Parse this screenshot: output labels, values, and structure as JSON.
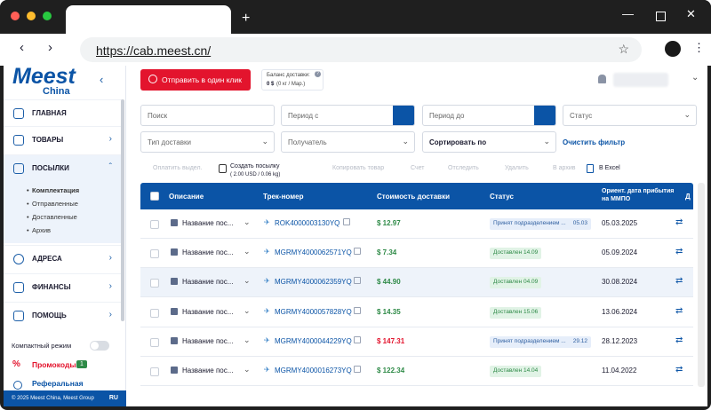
{
  "browser": {
    "url": "https://cab.meest.cn/"
  },
  "logo": {
    "brand": "Meest",
    "region": "China"
  },
  "sidebar": {
    "items": [
      {
        "label": "ГЛАВНАЯ"
      },
      {
        "label": "ТОВАРЫ"
      },
      {
        "label": "ПОСЫЛКИ"
      },
      {
        "label": "АДРЕСА"
      },
      {
        "label": "ФИНАНСЫ"
      },
      {
        "label": "ПОМОЩЬ"
      }
    ],
    "subitems": [
      "Комплектация",
      "Отправленные",
      "Доставленные",
      "Архив"
    ],
    "compact_mode": "Компактный режим",
    "promo": "Промокоды",
    "promo_count": "1",
    "referral": "Реферальная",
    "footer": "© 2025 Meest China, Meest Group",
    "lang": "RU"
  },
  "header": {
    "send_button": "Отправить в один клик",
    "balance_title": "Баланс доставки:",
    "balance_value": "0 $",
    "balance_detail": "(0 кг / Мар.)"
  },
  "filters": {
    "search": "Поиск",
    "period_from": "Период с",
    "period_to": "Период до",
    "status": "Статус",
    "delivery_type": "Тип доставки",
    "recipient": "Получатель",
    "sort": "Сортировать по",
    "clear": "Очистить фильтр"
  },
  "toolbar": {
    "pay": "Оплатить выдел.",
    "create": "Создать посылку",
    "create_sub": "( 2.00 USD / 0.06 kg)",
    "copy": "Копировать товар",
    "invoice": "Счет",
    "track": "Отследить",
    "delete": "Удалить",
    "archive": "В архив",
    "excel": "В Excel"
  },
  "table": {
    "headers": {
      "desc": "Описание",
      "track": "Трек-номер",
      "cost": "Стоимость доставки",
      "status": "Статус",
      "eta": "Ориент. дата прибытия на ММПО",
      "more": "Д"
    },
    "rows": [
      {
        "desc": "Название пос...",
        "track": "ROK4000003130YQ",
        "cost": "$ 12.97",
        "status": "Принят подразделением ...",
        "status_date": "05.03",
        "date": "05.03.2025"
      },
      {
        "desc": "Название пос...",
        "track": "MGRMY4000062571YQ",
        "cost": "$ 7.34",
        "status": "Доставлен 14.09",
        "status_date": "",
        "date": "05.09.2024"
      },
      {
        "desc": "Название пос...",
        "track": "MGRMY4000062359YQ",
        "cost": "$ 44.90",
        "status": "Доставлен 04.09",
        "status_date": "",
        "date": "30.08.2024"
      },
      {
        "desc": "Название пос...",
        "track": "MGRMY4000057828YQ",
        "cost": "$ 14.35",
        "status": "Доставлен 15.06",
        "status_date": "",
        "date": "13.06.2024"
      },
      {
        "desc": "Название пос...",
        "track": "MGRMY4000044229YQ",
        "cost": "$ 147.31",
        "status": "Принят подразделением ...",
        "status_date": "29.12",
        "date": "28.12.2023"
      },
      {
        "desc": "Название пос...",
        "track": "MGRMY4000016273YQ",
        "cost": "$ 122.34",
        "status": "Доставлен 14.04",
        "status_date": "",
        "date": "11.04.2022"
      }
    ]
  },
  "colors": {
    "brand": "#0b54a6",
    "accent": "#e3142d",
    "price": "#2e8a47",
    "price_alert": "#e3142d"
  }
}
